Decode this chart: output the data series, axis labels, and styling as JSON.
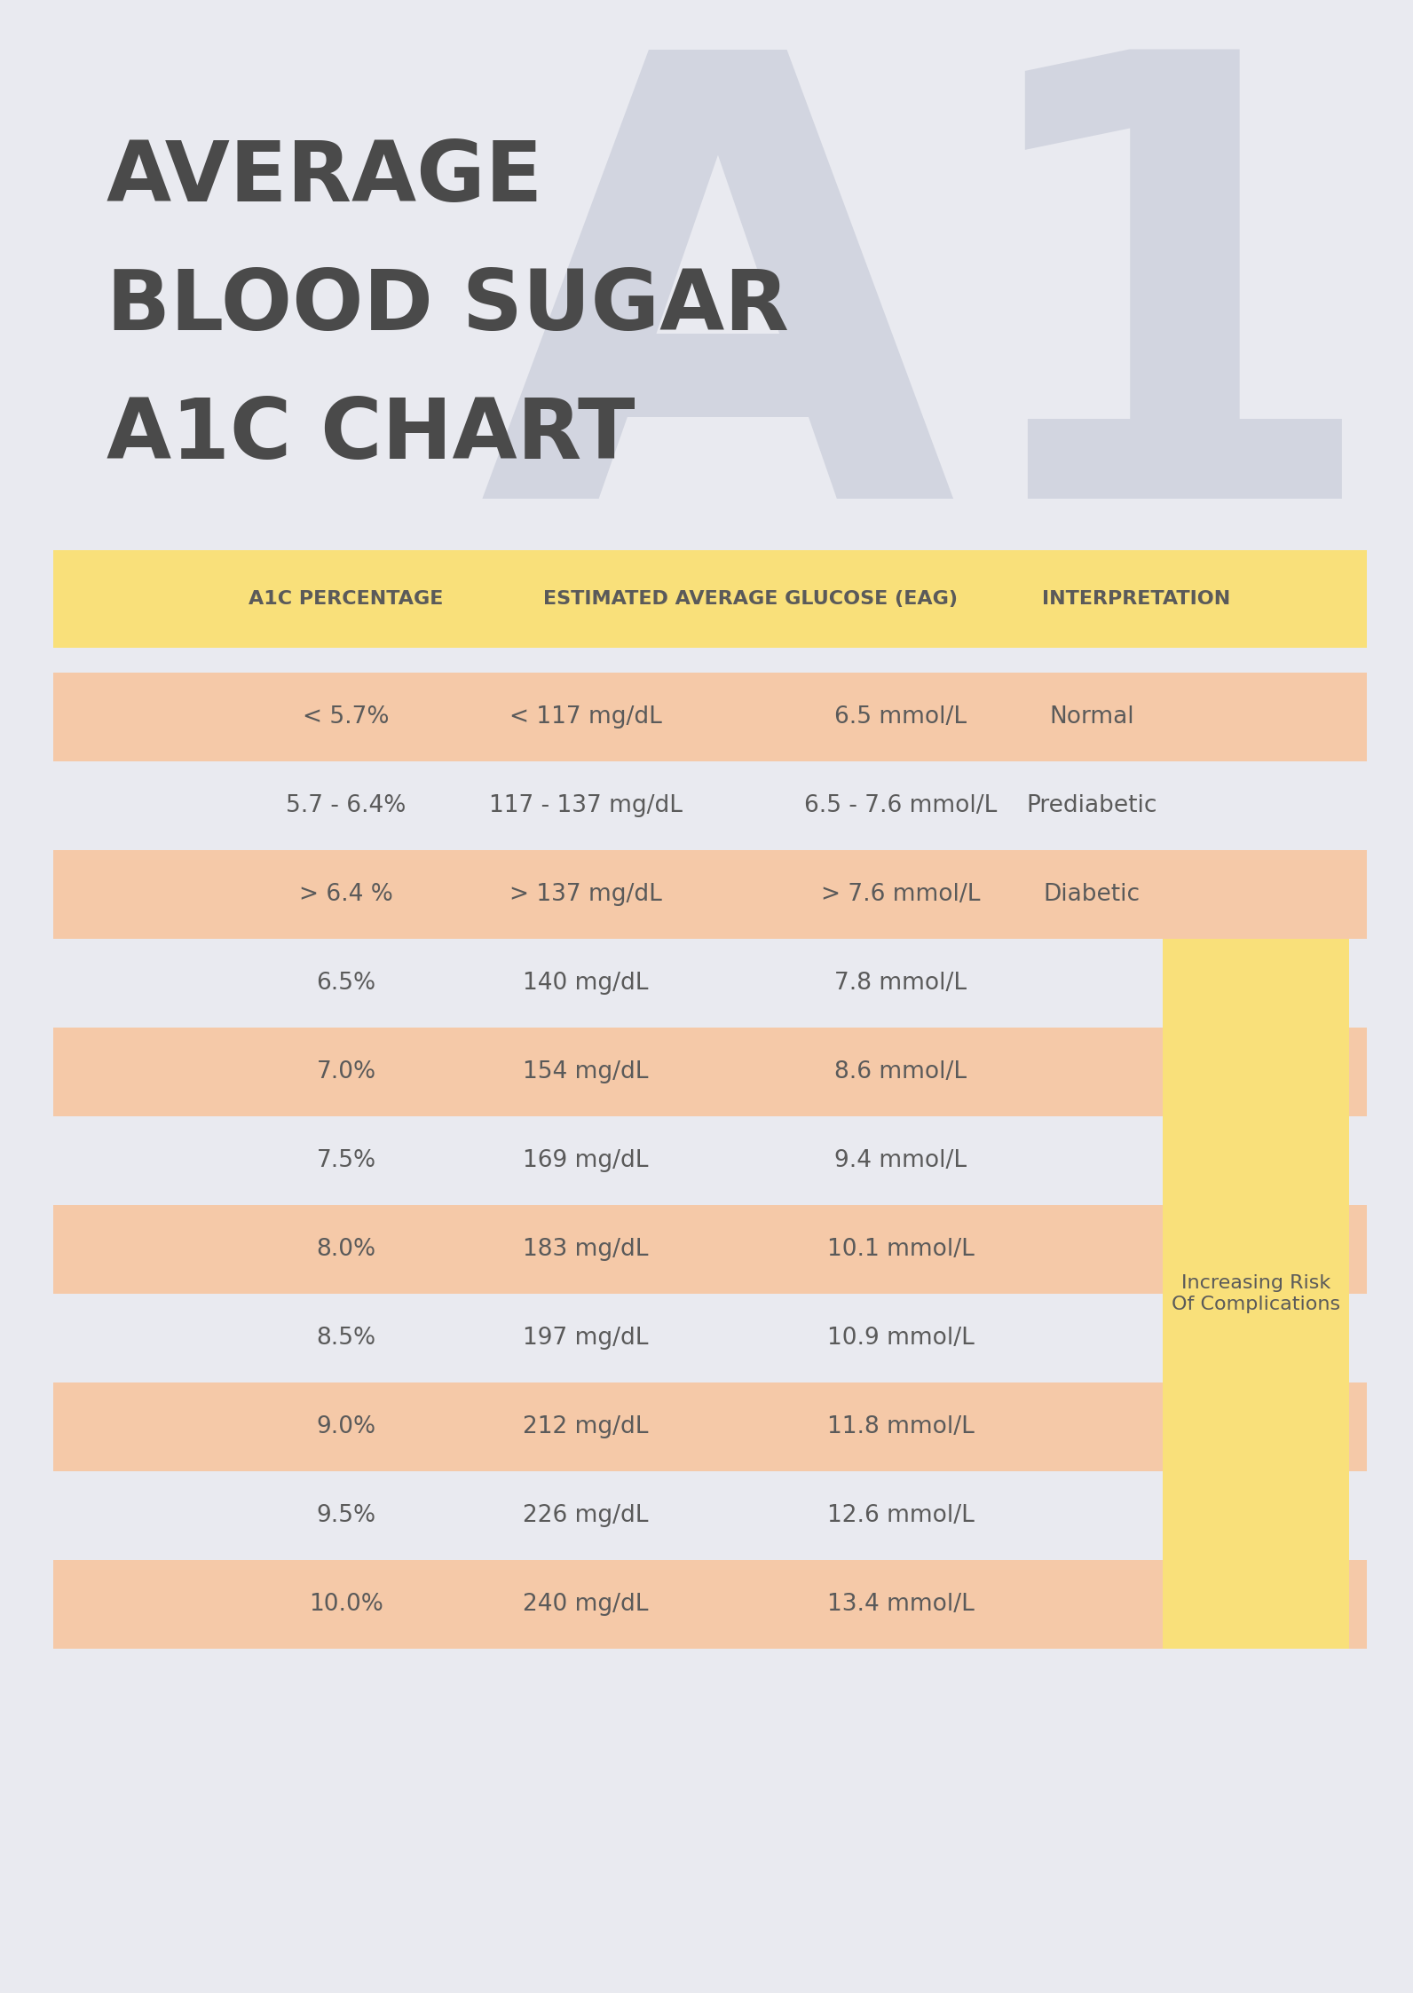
{
  "title_lines": [
    "AVERAGE",
    "BLOOD SUGAR",
    "A1C CHART"
  ],
  "bg_color": "#e9eaf0",
  "title_color": "#4a4a4a",
  "header_bg": "#f9e07a",
  "header_text_color": "#5a5a5a",
  "header_cols": [
    "A1C PERCENTAGE",
    "ESTIMATED AVERAGE GLUCOSE (EAG)",
    "INTERPRETATION"
  ],
  "row_odd_bg": "#f5c9a8",
  "row_even_bg": "#e9eaf0",
  "table_text_color": "#5a5a5a",
  "yellow_box_color": "#f9e07a",
  "rows": [
    [
      "< 5.7%",
      "< 117 mg/dL",
      "6.5 mmol/L",
      "Normal"
    ],
    [
      "5.7 - 6.4%",
      "117 - 137 mg/dL",
      "6.5 - 7.6 mmol/L",
      "Prediabetic"
    ],
    [
      "> 6.4 %",
      "> 137 mg/dL",
      "> 7.6 mmol/L",
      "Diabetic"
    ],
    [
      "6.5%",
      "140 mg/dL",
      "7.8 mmol/L",
      ""
    ],
    [
      "7.0%",
      "154 mg/dL",
      "8.6 mmol/L",
      ""
    ],
    [
      "7.5%",
      "169 mg/dL",
      "9.4 mmol/L",
      ""
    ],
    [
      "8.0%",
      "183 mg/dL",
      "10.1 mmol/L",
      ""
    ],
    [
      "8.5%",
      "197 mg/dL",
      "10.9 mmol/L",
      ""
    ],
    [
      "9.0%",
      "212 mg/dL",
      "11.8 mmol/L",
      ""
    ],
    [
      "9.5%",
      "226 mg/dL",
      "12.6 mmol/L",
      ""
    ],
    [
      "10.0%",
      "240 mg/dL",
      "13.4 mmol/L",
      ""
    ]
  ],
  "increasing_risk_text": "Increasing Risk\nOf Complications",
  "watermark_color": "#d2d5e0",
  "title_fontsize": 68,
  "header_fontsize": 16,
  "cell_fontsize": 19
}
